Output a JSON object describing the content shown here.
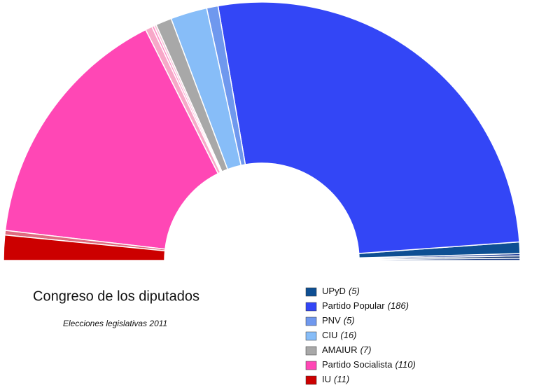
{
  "chart_data": {
    "type": "semicircle",
    "title": "Congreso de los diputados",
    "subtitle": "Elecciones legislativas 2011",
    "categories": [
      null,
      null,
      null,
      "UPyD",
      "Partido Popular",
      "PNV",
      "CIU",
      "AMAIUR",
      null,
      null,
      null,
      "Partido Socialista",
      null,
      "IU"
    ],
    "values": [
      1,
      1,
      1,
      5,
      186,
      5,
      16,
      7,
      1,
      1,
      3,
      110,
      2,
      11
    ],
    "value_labels": [
      null,
      null,
      null,
      "(5)",
      "(186)",
      "(5)",
      "(16)",
      "(7)",
      null,
      null,
      null,
      "(110)",
      null,
      "(11)"
    ],
    "colors": [
      "#1c3c86",
      "#0b2d6b",
      "#23409a",
      "#0e4f93",
      "#3346f6",
      "#6f98ee",
      "#87bdf8",
      "#a8a8a8",
      "#f3c6d6",
      "#ff8fc8",
      "#f7a8c8",
      "#ff47b5",
      "#e06a80",
      "#cc0000"
    ]
  }
}
